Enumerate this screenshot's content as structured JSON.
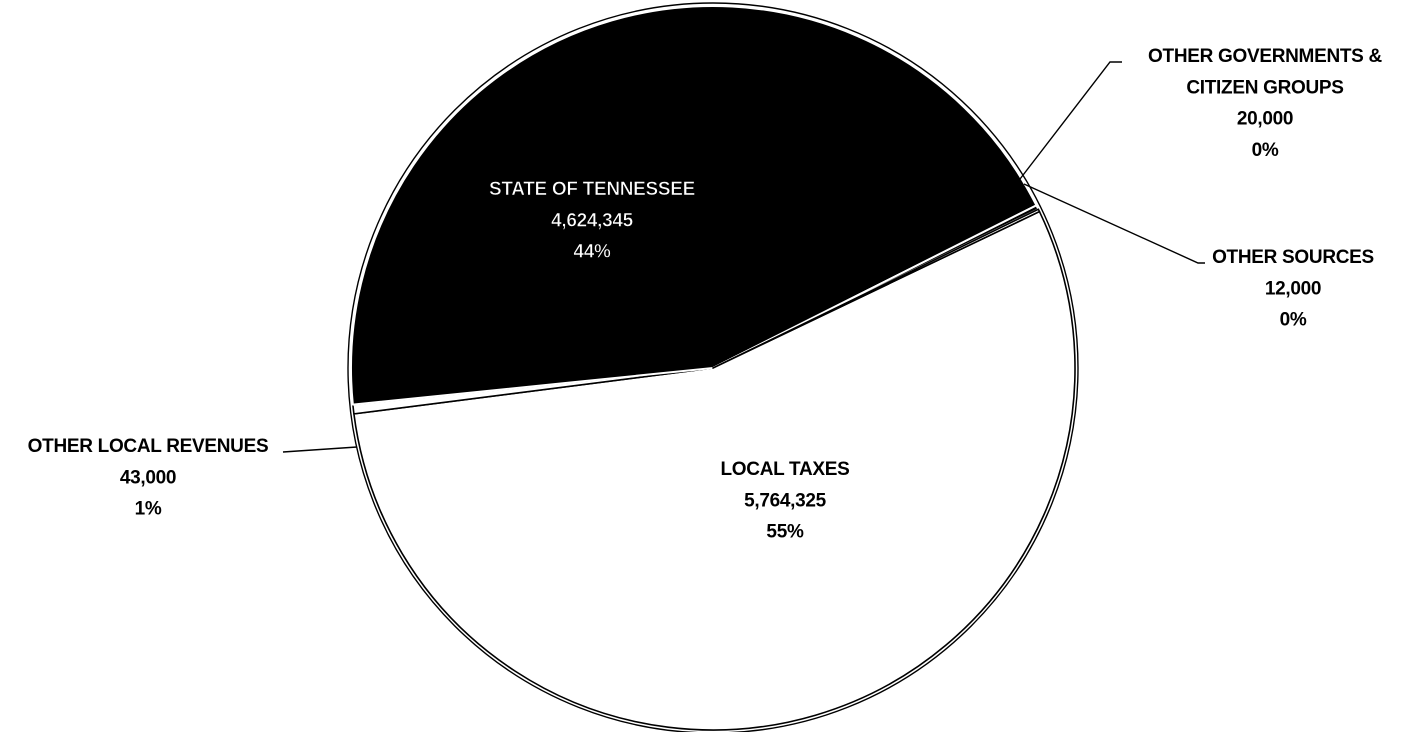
{
  "chart_data": {
    "type": "pie",
    "title": "",
    "slices": [
      {
        "label": "LOCAL TAXES",
        "value": 5764325,
        "value_label": "5,764,325",
        "percent_label": "55%",
        "color": "#ffffff"
      },
      {
        "label": "OTHER LOCAL REVENUES",
        "value": 43000,
        "value_label": "43,000",
        "percent_label": "1%",
        "color": "#ffffff"
      },
      {
        "label": "STATE OF TENNESSEE",
        "value": 4624345,
        "value_label": "4,624,345",
        "percent_label": "44%",
        "color": "#000000"
      },
      {
        "label_lines": [
          "OTHER GOVERNMENTS &",
          "CITIZEN GROUPS"
        ],
        "label": "OTHER GOVERNMENTS & CITIZEN GROUPS",
        "value": 20000,
        "value_label": "20,000",
        "percent_label": "0%",
        "color": "#000000"
      },
      {
        "label": "OTHER SOURCES",
        "value": 12000,
        "value_label": "12,000",
        "percent_label": "0%",
        "color": "#ffffff"
      }
    ],
    "legend": "none"
  }
}
